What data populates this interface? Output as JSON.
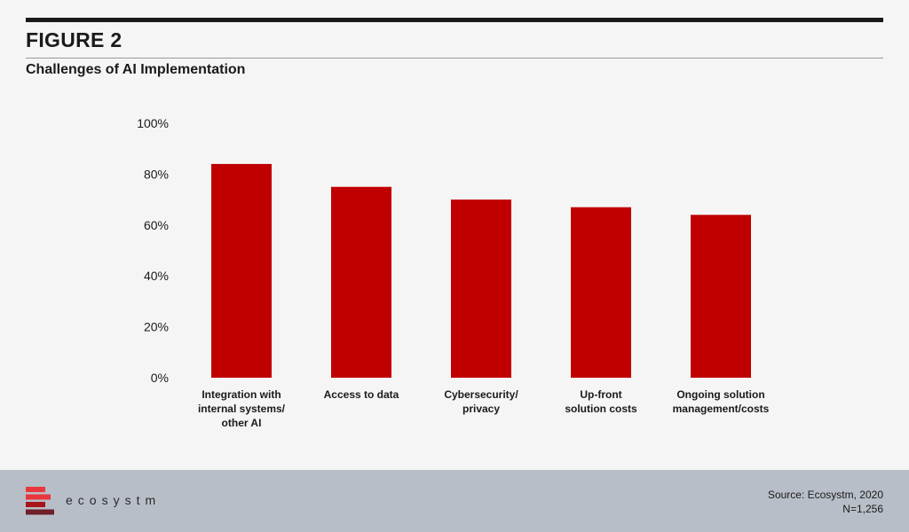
{
  "figure_label": "FIGURE 2",
  "chart_data": {
    "type": "bar",
    "title": "Challenges of AI Implementation",
    "categories": [
      [
        "Integration with",
        "internal systems/",
        "other AI"
      ],
      [
        "Access to data"
      ],
      [
        "Cybersecurity/",
        "privacy"
      ],
      [
        "Up-front",
        "solution costs"
      ],
      [
        "Ongoing solution",
        "management/costs"
      ]
    ],
    "values": [
      84,
      75,
      70,
      67,
      64
    ],
    "ylim": [
      0,
      100
    ],
    "yticks": [
      0,
      20,
      40,
      60,
      80,
      100
    ],
    "ytick_labels": [
      "0%",
      "20%",
      "40%",
      "60%",
      "80%",
      "100%"
    ],
    "bar_color": "#c00000",
    "grid": false,
    "legend": "none"
  },
  "footer": {
    "logo_text": "ecosystm",
    "source": "Source: Ecosystm, 2020",
    "sample_size": "N=1,256"
  },
  "colors": {
    "logo_red": "#e8383d",
    "logo_dark_red": "#a8141b",
    "logo_maroon": "#6e1f2a"
  }
}
